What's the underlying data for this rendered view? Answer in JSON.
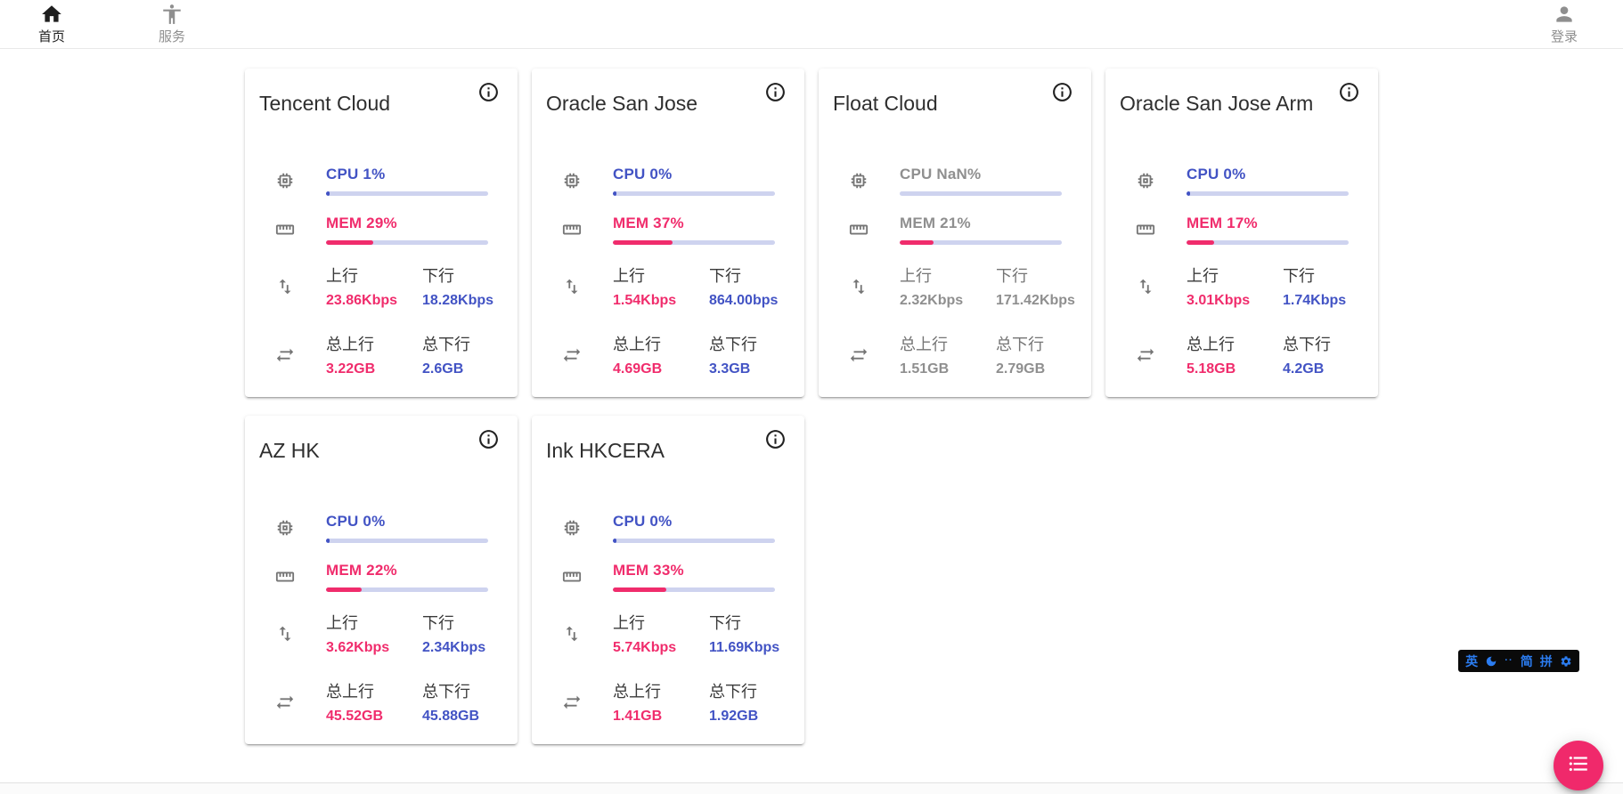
{
  "header": {
    "nav_items": [
      {
        "label": "首页",
        "icon": "home-icon",
        "active": true
      },
      {
        "label": "服务",
        "icon": "accessibility-icon",
        "active": false
      }
    ],
    "login": {
      "label": "登录",
      "icon": "person-icon"
    }
  },
  "labels": {
    "up": "上行",
    "down": "下行",
    "total_up": "总上行",
    "total_down": "总下行"
  },
  "colors": {
    "accent_blue": "#4253c4",
    "accent_pink": "#f02c6c",
    "bar_track": "#ced3ef",
    "muted_text": "#8f8f8f",
    "fab_pink": "#f0296b",
    "ime_blue": "#2b7cf0"
  },
  "icons": {
    "card_info": "info-icon",
    "cpu": "cpu-chip-icon",
    "mem": "ruler-icon",
    "net": "up-down-arrows-icon",
    "total": "swap-horizontal-icon",
    "fab": "list-icon",
    "ime_moon": "moon-icon",
    "ime_gear": "gear-icon"
  },
  "servers": [
    {
      "name": "Tencent Cloud",
      "cpu_label": "CPU 1%",
      "cpu_pct": 1,
      "mem_label": "MEM 29%",
      "mem_pct": 29,
      "offline": false,
      "up": "23.86Kbps",
      "down": "18.28Kbps",
      "total_up": "3.22GB",
      "total_down": "2.6GB"
    },
    {
      "name": "Oracle San Jose",
      "cpu_label": "CPU 0%",
      "cpu_pct": 0,
      "mem_label": "MEM 37%",
      "mem_pct": 37,
      "offline": false,
      "up": "1.54Kbps",
      "down": "864.00bps",
      "total_up": "4.69GB",
      "total_down": "3.3GB"
    },
    {
      "name": "Float Cloud",
      "cpu_label": "CPU NaN%",
      "cpu_pct": 0,
      "mem_label": "MEM 21%",
      "mem_pct": 21,
      "offline": true,
      "up": "2.32Kbps",
      "down": "171.42Kbps",
      "total_up": "1.51GB",
      "total_down": "2.79GB"
    },
    {
      "name": "Oracle San Jose Arm",
      "cpu_label": "CPU 0%",
      "cpu_pct": 0,
      "mem_label": "MEM 17%",
      "mem_pct": 17,
      "offline": false,
      "up": "3.01Kbps",
      "down": "1.74Kbps",
      "total_up": "5.18GB",
      "total_down": "4.2GB"
    },
    {
      "name": "AZ HK",
      "cpu_label": "CPU 0%",
      "cpu_pct": 0,
      "mem_label": "MEM 22%",
      "mem_pct": 22,
      "offline": false,
      "up": "3.62Kbps",
      "down": "2.34Kbps",
      "total_up": "45.52GB",
      "total_down": "45.88GB"
    },
    {
      "name": "Ink HKCERA",
      "cpu_label": "CPU 0%",
      "cpu_pct": 0,
      "mem_label": "MEM 33%",
      "mem_pct": 33,
      "offline": false,
      "up": "5.74Kbps",
      "down": "11.69Kbps",
      "total_up": "1.41GB",
      "total_down": "1.92GB"
    }
  ],
  "ime_bar": {
    "lang": "英",
    "punct": "··",
    "simplified": "简",
    "pinyin": "拼"
  }
}
